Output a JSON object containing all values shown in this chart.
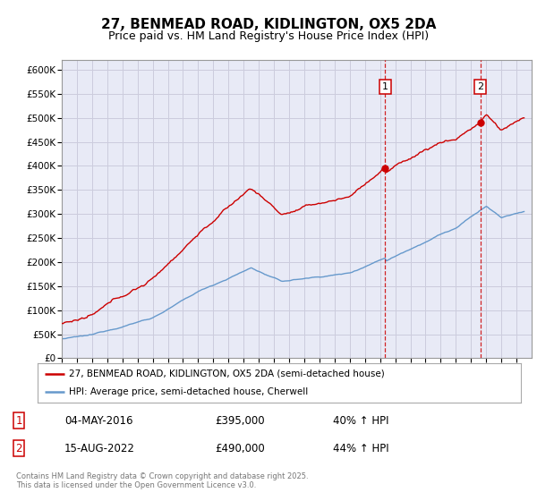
{
  "title": "27, BENMEAD ROAD, KIDLINGTON, OX5 2DA",
  "subtitle": "Price paid vs. HM Land Registry's House Price Index (HPI)",
  "title_fontsize": 11,
  "subtitle_fontsize": 9,
  "ylabel_ticks": [
    "£0",
    "£50K",
    "£100K",
    "£150K",
    "£200K",
    "£250K",
    "£300K",
    "£350K",
    "£400K",
    "£450K",
    "£500K",
    "£550K",
    "£600K"
  ],
  "ytick_values": [
    0,
    50000,
    100000,
    150000,
    200000,
    250000,
    300000,
    350000,
    400000,
    450000,
    500000,
    550000,
    600000
  ],
  "ylim": [
    0,
    620000
  ],
  "red_line_color": "#cc0000",
  "blue_line_color": "#6699cc",
  "grid_color": "#ccccdd",
  "bg_color": "#ffffff",
  "plot_bg_color": "#e8eaf6",
  "marker1_date": "04-MAY-2016",
  "marker1_price": "£395,000",
  "marker1_hpi": "40% ↑ HPI",
  "marker1_x": 2016.34,
  "marker2_date": "15-AUG-2022",
  "marker2_price": "£490,000",
  "marker2_hpi": "44% ↑ HPI",
  "marker2_x": 2022.62,
  "legend_label1": "27, BENMEAD ROAD, KIDLINGTON, OX5 2DA (semi-detached house)",
  "legend_label2": "HPI: Average price, semi-detached house, Cherwell",
  "footnote": "Contains HM Land Registry data © Crown copyright and database right 2025.\nThis data is licensed under the Open Government Licence v3.0.",
  "red_sale1_price": 395000,
  "red_sale2_price": 490000
}
